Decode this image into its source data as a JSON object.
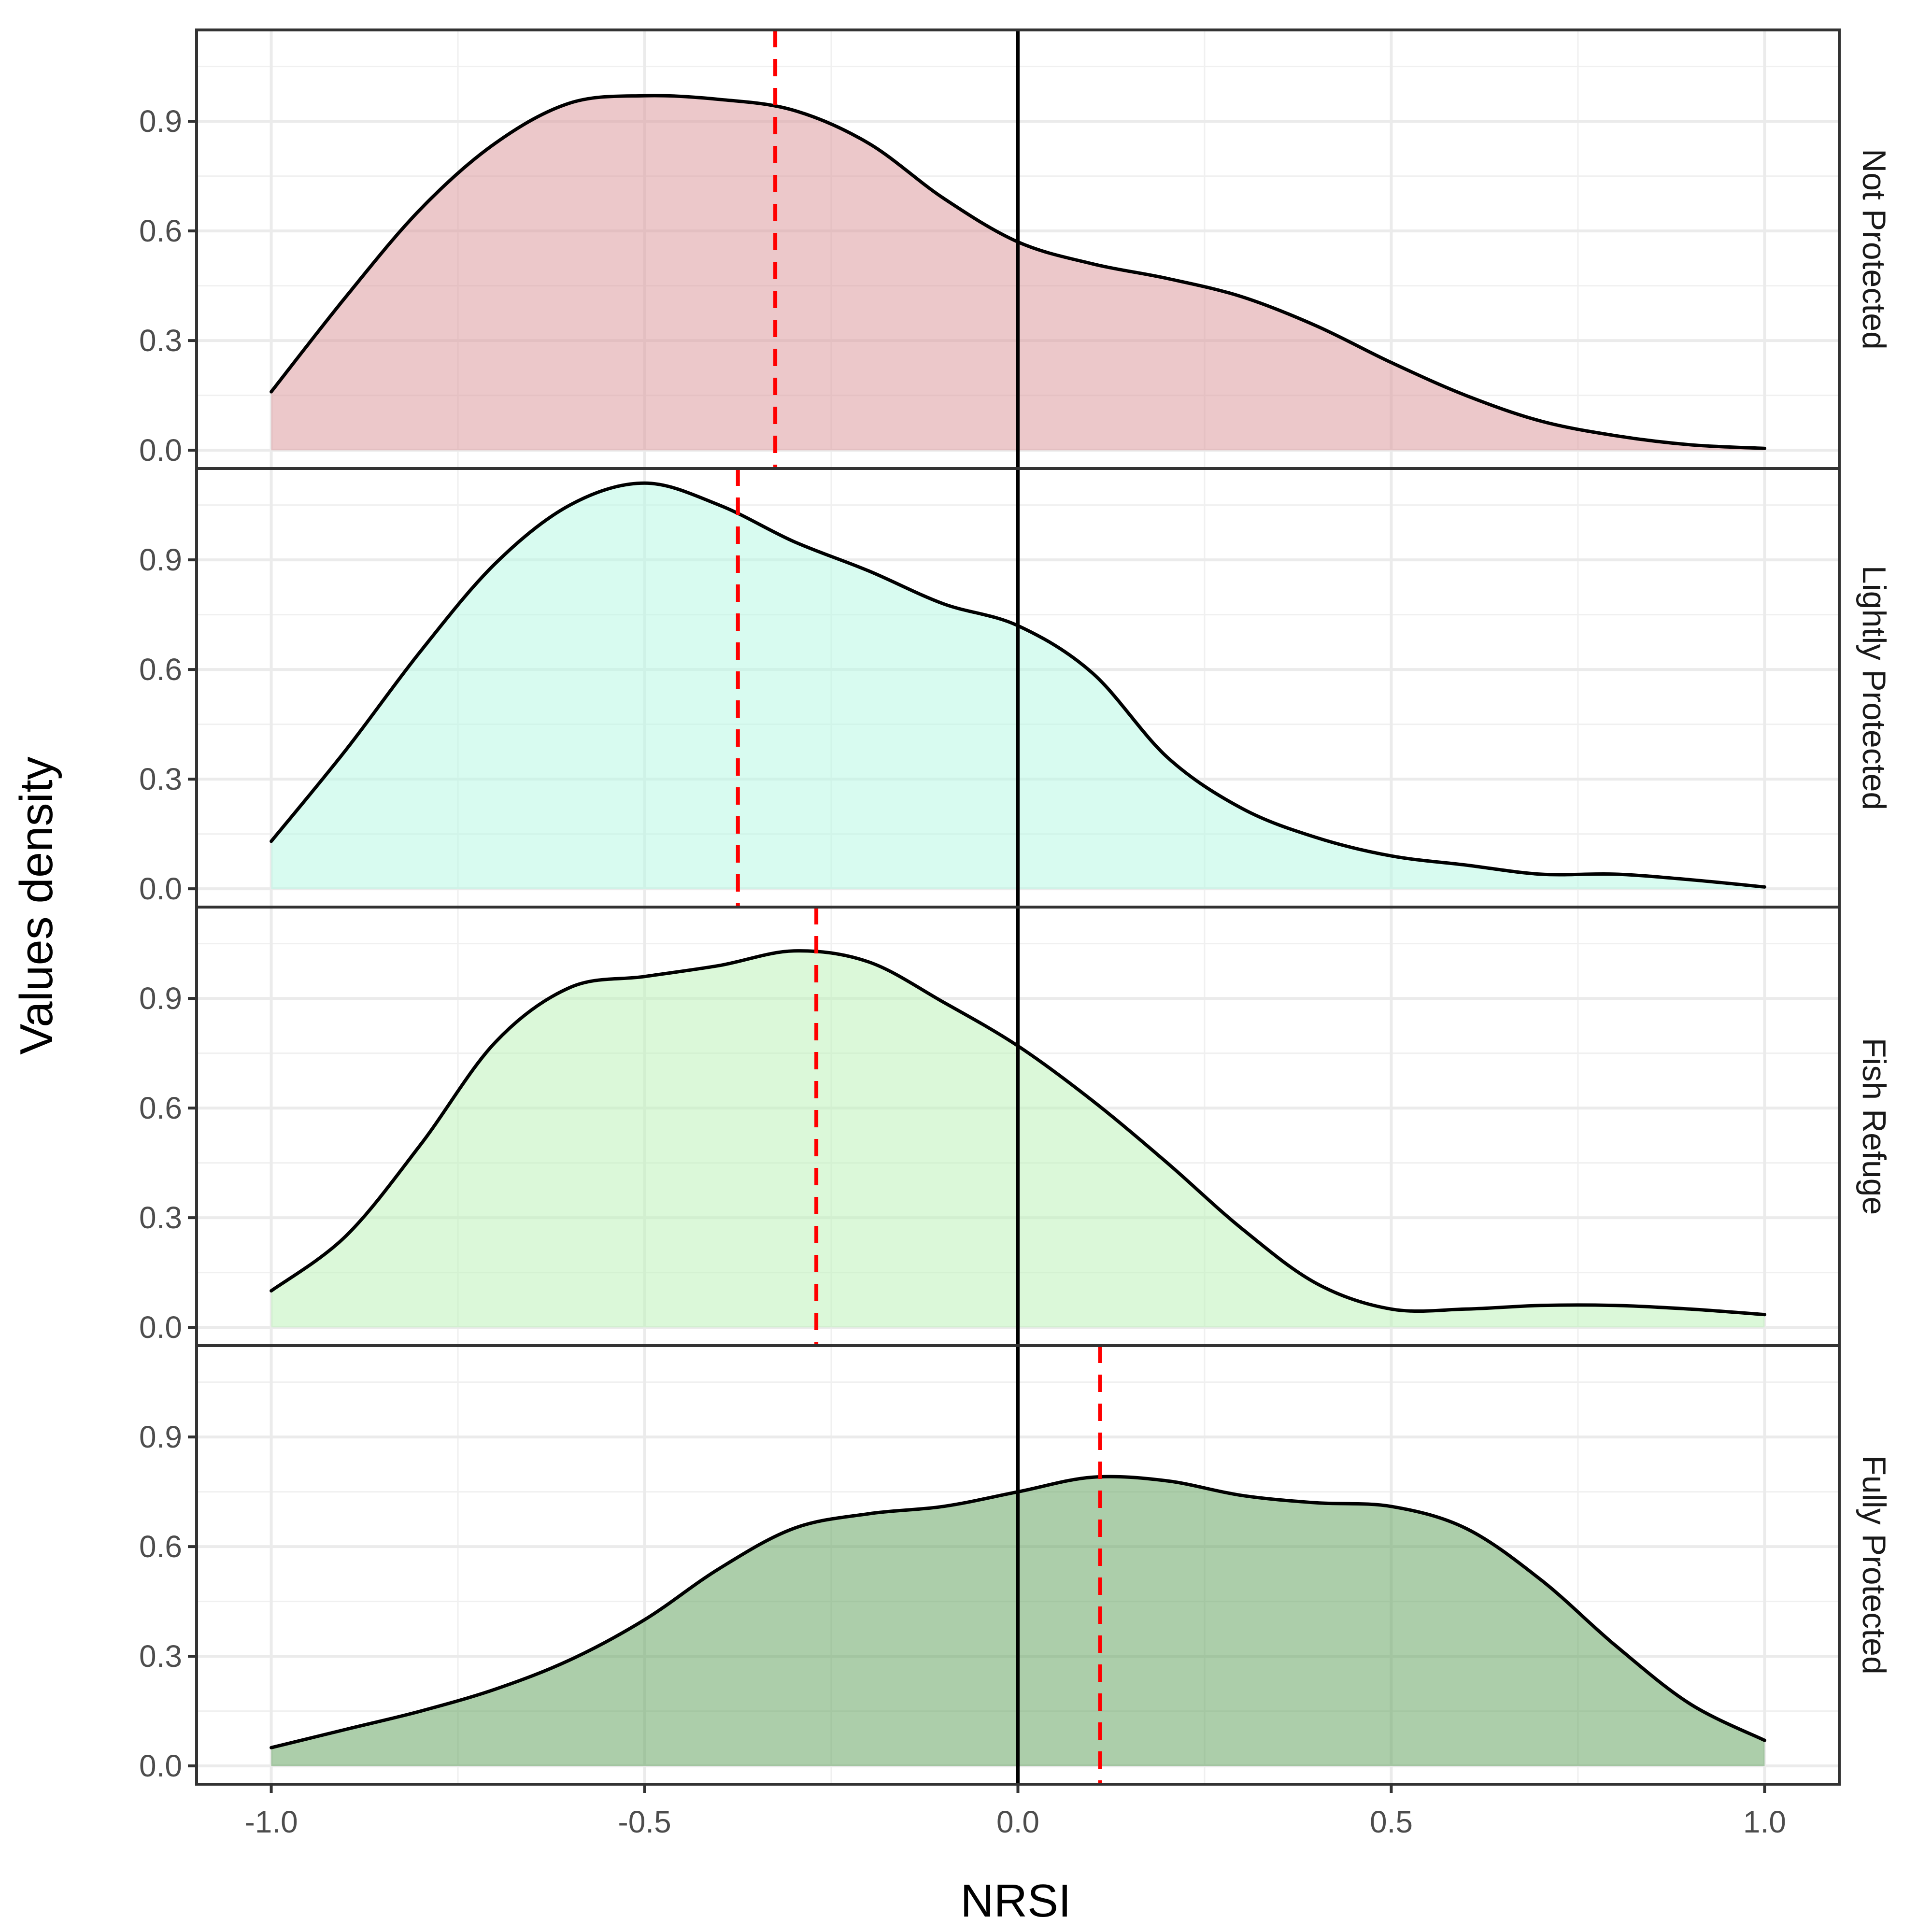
{
  "chart_data": {
    "type": "area",
    "subtype": "faceted-density",
    "xlabel": "NRSI",
    "ylabel": "Values density",
    "xlim": [
      -1.1,
      1.1
    ],
    "ylim": [
      -0.05,
      1.15
    ],
    "x_ticks": [
      -1.0,
      -0.5,
      0.0,
      0.5,
      1.0
    ],
    "x_tick_labels": [
      "-1.0",
      "-0.5",
      "0.0",
      "0.5",
      "1.0"
    ],
    "y_ticks": [
      0.0,
      0.3,
      0.6,
      0.9
    ],
    "y_tick_labels": [
      "0.0",
      "0.3",
      "0.6",
      "0.9"
    ],
    "grid": true,
    "reference_line_x": 0.0,
    "panels": [
      {
        "name": "Not Protected",
        "fill": "#dc9a9e",
        "mean_line_x": -0.325,
        "x": [
          -1.0,
          -0.9,
          -0.8,
          -0.7,
          -0.6,
          -0.5,
          -0.4,
          -0.3,
          -0.2,
          -0.1,
          0.0,
          0.1,
          0.2,
          0.3,
          0.4,
          0.5,
          0.6,
          0.7,
          0.8,
          0.9,
          1.0
        ],
        "y": [
          0.16,
          0.42,
          0.66,
          0.84,
          0.95,
          0.97,
          0.96,
          0.93,
          0.84,
          0.69,
          0.57,
          0.51,
          0.47,
          0.42,
          0.34,
          0.24,
          0.15,
          0.08,
          0.04,
          0.015,
          0.005
        ]
      },
      {
        "name": "Lightly Protected",
        "fill": "#b8f7e4",
        "mean_line_x": -0.375,
        "x": [
          -1.0,
          -0.9,
          -0.8,
          -0.7,
          -0.6,
          -0.5,
          -0.4,
          -0.3,
          -0.2,
          -0.1,
          0.0,
          0.1,
          0.2,
          0.3,
          0.4,
          0.5,
          0.6,
          0.7,
          0.8,
          0.9,
          1.0
        ],
        "y": [
          0.13,
          0.38,
          0.65,
          0.89,
          1.05,
          1.11,
          1.05,
          0.95,
          0.87,
          0.78,
          0.72,
          0.59,
          0.36,
          0.22,
          0.14,
          0.09,
          0.065,
          0.04,
          0.04,
          0.025,
          0.005
        ]
      },
      {
        "name": "Fish Refuge",
        "fill": "#bdf2ba",
        "mean_line_x": -0.27,
        "x": [
          -1.0,
          -0.9,
          -0.8,
          -0.7,
          -0.6,
          -0.5,
          -0.4,
          -0.3,
          -0.2,
          -0.1,
          0.0,
          0.1,
          0.2,
          0.3,
          0.4,
          0.5,
          0.6,
          0.7,
          0.8,
          0.9,
          1.0
        ],
        "y": [
          0.1,
          0.25,
          0.5,
          0.78,
          0.93,
          0.96,
          0.99,
          1.03,
          1.0,
          0.89,
          0.77,
          0.62,
          0.45,
          0.27,
          0.12,
          0.05,
          0.05,
          0.06,
          0.06,
          0.05,
          0.035
        ]
      },
      {
        "name": "Fully Protected",
        "fill": "#67a565",
        "mean_line_x": 0.11,
        "x": [
          -1.0,
          -0.9,
          -0.8,
          -0.7,
          -0.6,
          -0.5,
          -0.4,
          -0.3,
          -0.2,
          -0.1,
          0.0,
          0.1,
          0.2,
          0.3,
          0.4,
          0.5,
          0.6,
          0.7,
          0.8,
          0.9,
          1.0
        ],
        "y": [
          0.05,
          0.1,
          0.15,
          0.21,
          0.29,
          0.4,
          0.54,
          0.65,
          0.69,
          0.71,
          0.75,
          0.79,
          0.78,
          0.74,
          0.72,
          0.71,
          0.65,
          0.51,
          0.33,
          0.17,
          0.07
        ]
      }
    ]
  }
}
